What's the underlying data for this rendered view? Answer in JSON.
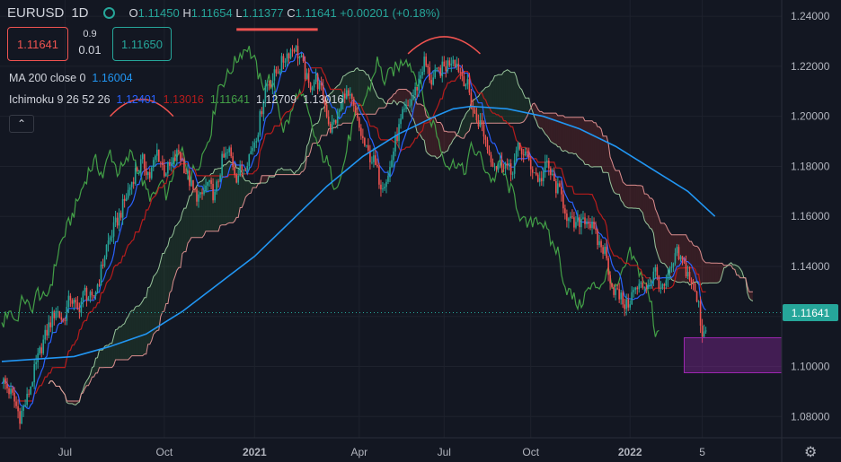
{
  "header": {
    "symbol": "EURUSD",
    "interval": "1D",
    "ohlc": {
      "o_label": "O",
      "o": "1.11450",
      "h_label": "H",
      "h": "1.11654",
      "l_label": "L",
      "l": "1.11377",
      "c_label": "C",
      "c": "1.11641",
      "change": "+0.00201 (+0.18%)"
    },
    "sell_price": "1.11641",
    "buy_price": "1.11650",
    "spread_top": "0.9",
    "spread_bottom": "0.01"
  },
  "indicators": {
    "ma": {
      "label": "MA 200 close 0",
      "value": "1.16004"
    },
    "ichimoku": {
      "label": "Ichimoku 9 26 52 26",
      "v1": "1.12401",
      "v2": "1.13016",
      "v3": "1.11641",
      "v4": "1.12709",
      "v5": "1.13016"
    },
    "collapse_icon": "chevron-up-icon"
  },
  "colors": {
    "background": "#131722",
    "grid": "#1e222d",
    "price": "#26a69a",
    "ma": "#2196f3",
    "tenkan": "#2962ff",
    "kijun": "#b71c1c",
    "chikou": "#43a047",
    "span_a": "#a5d6a7",
    "span_b": "#ef9a9a",
    "annotation_red": "#ef5350",
    "box": "#9c27b0"
  },
  "chart_data": {
    "type": "line",
    "instrument": "EURUSD",
    "timeframe": "1D",
    "x_ticks": [
      "Jul",
      "Oct",
      "2021",
      "Apr",
      "Jul",
      "Oct",
      "2022",
      "5"
    ],
    "y_ticks": [
      "1.24000",
      "1.22000",
      "1.20000",
      "1.18000",
      "1.16000",
      "1.14000",
      "1.12000",
      "1.10000",
      "1.08000"
    ],
    "ylim": [
      1.0715,
      1.2465
    ],
    "last_price": "1.11641",
    "series": [
      {
        "name": "EURUSD",
        "color": "#26a69a",
        "values": [
          [
            0,
            1.095
          ],
          [
            6,
            1.088
          ],
          [
            10,
            1.08
          ],
          [
            14,
            1.087
          ],
          [
            18,
            1.098
          ],
          [
            22,
            1.108
          ],
          [
            26,
            1.116
          ],
          [
            30,
            1.123
          ],
          [
            34,
            1.118
          ],
          [
            38,
            1.128
          ],
          [
            42,
            1.122
          ],
          [
            46,
            1.13
          ],
          [
            50,
            1.126
          ],
          [
            54,
            1.135
          ],
          [
            58,
            1.148
          ],
          [
            62,
            1.155
          ],
          [
            66,
            1.162
          ],
          [
            70,
            1.17
          ],
          [
            74,
            1.178
          ],
          [
            78,
            1.182
          ],
          [
            82,
            1.176
          ],
          [
            86,
            1.186
          ],
          [
            90,
            1.178
          ],
          [
            94,
            1.18
          ],
          [
            98,
            1.186
          ],
          [
            102,
            1.178
          ],
          [
            106,
            1.17
          ],
          [
            110,
            1.167
          ],
          [
            114,
            1.173
          ],
          [
            118,
            1.168
          ],
          [
            122,
            1.182
          ],
          [
            126,
            1.186
          ],
          [
            130,
            1.176
          ],
          [
            134,
            1.18
          ],
          [
            138,
            1.186
          ],
          [
            142,
            1.195
          ],
          [
            146,
            1.212
          ],
          [
            150,
            1.215
          ],
          [
            154,
            1.22
          ],
          [
            158,
            1.225
          ],
          [
            162,
            1.228
          ],
          [
            166,
            1.222
          ],
          [
            170,
            1.212
          ],
          [
            174,
            1.215
          ],
          [
            178,
            1.208
          ],
          [
            182,
            1.195
          ],
          [
            186,
            1.2
          ],
          [
            190,
            1.21
          ],
          [
            194,
            1.205
          ],
          [
            198,
            1.195
          ],
          [
            202,
            1.186
          ],
          [
            206,
            1.182
          ],
          [
            210,
            1.173
          ],
          [
            214,
            1.176
          ],
          [
            218,
            1.19
          ],
          [
            222,
            1.2
          ],
          [
            226,
            1.205
          ],
          [
            230,
            1.212
          ],
          [
            234,
            1.222
          ],
          [
            238,
            1.214
          ],
          [
            242,
            1.218
          ],
          [
            246,
            1.22
          ],
          [
            250,
            1.224
          ],
          [
            254,
            1.218
          ],
          [
            258,
            1.212
          ],
          [
            262,
            1.2
          ],
          [
            266,
            1.196
          ],
          [
            270,
            1.185
          ],
          [
            274,
            1.18
          ],
          [
            278,
            1.182
          ],
          [
            282,
            1.177
          ],
          [
            286,
            1.187
          ],
          [
            290,
            1.185
          ],
          [
            294,
            1.179
          ],
          [
            298,
            1.174
          ],
          [
            302,
            1.181
          ],
          [
            306,
            1.173
          ],
          [
            310,
            1.168
          ],
          [
            314,
            1.158
          ],
          [
            318,
            1.156
          ],
          [
            322,
            1.16
          ],
          [
            326,
            1.157
          ],
          [
            330,
            1.15
          ],
          [
            334,
            1.146
          ],
          [
            338,
            1.132
          ],
          [
            342,
            1.128
          ],
          [
            346,
            1.124
          ],
          [
            350,
            1.13
          ],
          [
            354,
            1.132
          ],
          [
            358,
            1.133
          ],
          [
            362,
            1.138
          ],
          [
            366,
            1.13
          ],
          [
            370,
            1.137
          ],
          [
            374,
            1.145
          ],
          [
            378,
            1.14
          ],
          [
            382,
            1.134
          ],
          [
            386,
            1.124
          ],
          [
            388,
            1.113
          ],
          [
            390,
            1.116
          ]
        ]
      },
      {
        "name": "MA 200",
        "color": "#2196f3",
        "values": [
          [
            0,
            1.102
          ],
          [
            20,
            1.103
          ],
          [
            40,
            1.104
          ],
          [
            60,
            1.108
          ],
          [
            80,
            1.113
          ],
          [
            100,
            1.122
          ],
          [
            120,
            1.133
          ],
          [
            140,
            1.144
          ],
          [
            160,
            1.158
          ],
          [
            180,
            1.172
          ],
          [
            200,
            1.184
          ],
          [
            220,
            1.193
          ],
          [
            240,
            1.2
          ],
          [
            250,
            1.203
          ],
          [
            260,
            1.204
          ],
          [
            280,
            1.203
          ],
          [
            300,
            1.2
          ],
          [
            320,
            1.195
          ],
          [
            340,
            1.188
          ],
          [
            360,
            1.179
          ],
          [
            380,
            1.17
          ],
          [
            395,
            1.16
          ]
        ]
      }
    ],
    "annotations": [
      {
        "type": "arc",
        "label": "top",
        "x_range": [
          60,
          95
        ],
        "y": 1.2
      },
      {
        "type": "horizontal",
        "x_range": [
          130,
          175
        ],
        "y": 1.2347
      },
      {
        "type": "arc",
        "label": "top",
        "x_range": [
          225,
          265
        ],
        "y": 1.225
      },
      {
        "type": "box",
        "x_range": [
          378,
          432
        ],
        "y_range": [
          1.0975,
          1.1115
        ]
      }
    ]
  }
}
